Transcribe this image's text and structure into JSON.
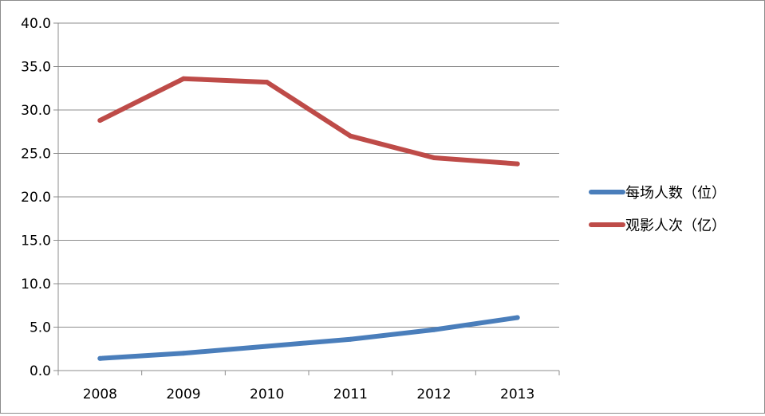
{
  "chart_data": {
    "type": "line",
    "categories": [
      "2008",
      "2009",
      "2010",
      "2011",
      "2012",
      "2013"
    ],
    "series": [
      {
        "name": "每场人数（位）",
        "color": "#4a7ebb",
        "values": [
          1.4,
          2.0,
          2.8,
          3.6,
          4.7,
          6.1
        ]
      },
      {
        "name": "观影人次（亿）",
        "color": "#be4b48",
        "values": [
          28.8,
          33.6,
          33.2,
          27.0,
          24.5,
          23.8
        ]
      }
    ],
    "y_ticks": [
      "0.0",
      "5.0",
      "10.0",
      "15.0",
      "20.0",
      "25.0",
      "30.0",
      "35.0",
      "40.0"
    ],
    "ylim": [
      0,
      40
    ],
    "grid": "horizontal",
    "legend": "right",
    "title": "",
    "xlabel": "",
    "ylabel": ""
  }
}
